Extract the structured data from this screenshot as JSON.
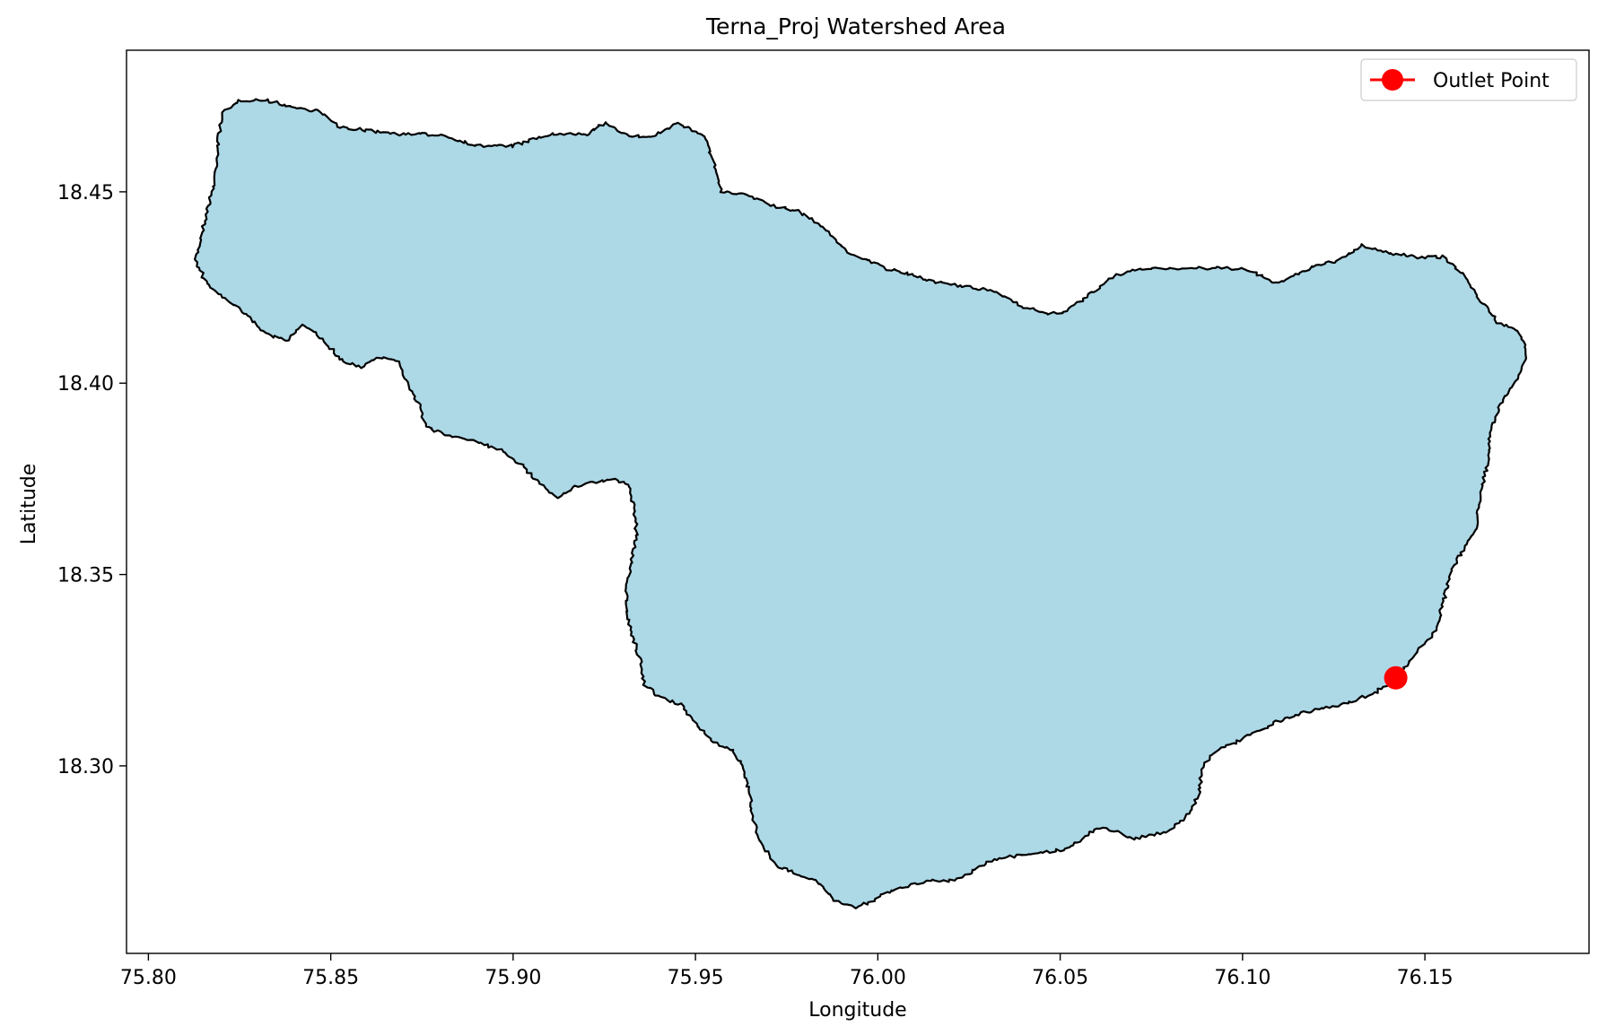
{
  "title": "Terna_Proj Watershed Area",
  "xlabel": "Longitude",
  "ylabel": "Latitude",
  "xticks": [
    "75.80",
    "75.85",
    "75.90",
    "75.95",
    "76.00",
    "76.05",
    "76.10",
    "76.15"
  ],
  "yticks": [
    "18.30",
    "18.35",
    "18.40",
    "18.45"
  ],
  "legend": {
    "label": "Outlet Point",
    "placement": "top-right"
  },
  "colors": {
    "watershed_fill": "#add8e6",
    "watershed_edge": "#000000",
    "outlet": "#ff0000"
  },
  "chart_data": {
    "type": "map",
    "xlim": [
      75.794,
      76.195
    ],
    "ylim": [
      18.251,
      18.487
    ],
    "x_ticks": [
      75.8,
      75.85,
      75.9,
      75.95,
      76.0,
      76.05,
      76.1,
      76.15
    ],
    "y_ticks": [
      18.3,
      18.35,
      18.4,
      18.45
    ],
    "grid": false,
    "watershed_boundary": [
      [
        75.813,
        18.432
      ],
      [
        75.815,
        18.441
      ],
      [
        75.818,
        18.452
      ],
      [
        75.819,
        18.462
      ],
      [
        75.82,
        18.47
      ],
      [
        75.825,
        18.474
      ],
      [
        75.832,
        18.474
      ],
      [
        75.84,
        18.472
      ],
      [
        75.847,
        18.471
      ],
      [
        75.852,
        18.467
      ],
      [
        75.86,
        18.466
      ],
      [
        75.87,
        18.465
      ],
      [
        75.88,
        18.465
      ],
      [
        75.89,
        18.462
      ],
      [
        75.9,
        18.462
      ],
      [
        75.91,
        18.465
      ],
      [
        75.92,
        18.465
      ],
      [
        75.925,
        18.468
      ],
      [
        75.931,
        18.465
      ],
      [
        75.938,
        18.464
      ],
      [
        75.945,
        18.468
      ],
      [
        75.952,
        18.465
      ],
      [
        75.955,
        18.458
      ],
      [
        75.957,
        18.45
      ],
      [
        75.965,
        18.449
      ],
      [
        75.972,
        18.446
      ],
      [
        75.978,
        18.445
      ],
      [
        75.983,
        18.442
      ],
      [
        75.988,
        18.438
      ],
      [
        75.992,
        18.434
      ],
      [
        75.998,
        18.432
      ],
      [
        76.002,
        18.43
      ],
      [
        76.01,
        18.428
      ],
      [
        76.018,
        18.426
      ],
      [
        76.025,
        18.425
      ],
      [
        76.032,
        18.424
      ],
      [
        76.04,
        18.42
      ],
      [
        76.047,
        18.418
      ],
      [
        76.052,
        18.419
      ],
      [
        76.058,
        18.423
      ],
      [
        76.065,
        18.428
      ],
      [
        76.073,
        18.43
      ],
      [
        76.082,
        18.43
      ],
      [
        76.09,
        18.43
      ],
      [
        76.1,
        18.43
      ],
      [
        76.11,
        18.426
      ],
      [
        76.118,
        18.43
      ],
      [
        76.126,
        18.432
      ],
      [
        76.133,
        18.436
      ],
      [
        76.14,
        18.434
      ],
      [
        76.148,
        18.433
      ],
      [
        76.155,
        18.433
      ],
      [
        76.16,
        18.429
      ],
      [
        76.165,
        18.422
      ],
      [
        76.17,
        18.416
      ],
      [
        76.176,
        18.413
      ],
      [
        76.178,
        18.408
      ],
      [
        76.176,
        18.402
      ],
      [
        76.171,
        18.395
      ],
      [
        76.168,
        18.388
      ],
      [
        76.167,
        18.378
      ],
      [
        76.165,
        18.37
      ],
      [
        76.164,
        18.362
      ],
      [
        76.16,
        18.356
      ],
      [
        76.157,
        18.35
      ],
      [
        76.155,
        18.343
      ],
      [
        76.153,
        18.335
      ],
      [
        76.148,
        18.33
      ],
      [
        76.142,
        18.323
      ],
      [
        76.136,
        18.319
      ],
      [
        76.128,
        18.316
      ],
      [
        76.117,
        18.314
      ],
      [
        76.108,
        18.311
      ],
      [
        76.1,
        18.307
      ],
      [
        76.093,
        18.304
      ],
      [
        76.089,
        18.3
      ],
      [
        76.088,
        18.293
      ],
      [
        76.086,
        18.288
      ],
      [
        76.08,
        18.283
      ],
      [
        76.075,
        18.282
      ],
      [
        76.07,
        18.281
      ],
      [
        76.065,
        18.283
      ],
      [
        76.06,
        18.284
      ],
      [
        76.055,
        18.28
      ],
      [
        76.05,
        18.278
      ],
      [
        76.042,
        18.277
      ],
      [
        76.035,
        18.276
      ],
      [
        76.03,
        18.275
      ],
      [
        76.025,
        18.272
      ],
      [
        76.02,
        18.27
      ],
      [
        76.015,
        18.27
      ],
      [
        76.01,
        18.269
      ],
      [
        76.005,
        18.268
      ],
      [
        75.999,
        18.265
      ],
      [
        75.994,
        18.263
      ],
      [
        75.988,
        18.265
      ],
      [
        75.983,
        18.27
      ],
      [
        75.977,
        18.272
      ],
      [
        75.972,
        18.274
      ],
      [
        75.968,
        18.28
      ],
      [
        75.966,
        18.285
      ],
      [
        75.965,
        18.292
      ],
      [
        75.963,
        18.3
      ],
      [
        75.96,
        18.304
      ],
      [
        75.955,
        18.306
      ],
      [
        75.95,
        18.311
      ],
      [
        75.946,
        18.316
      ],
      [
        75.94,
        18.318
      ],
      [
        75.936,
        18.321
      ],
      [
        75.935,
        18.327
      ],
      [
        75.933,
        18.333
      ],
      [
        75.931,
        18.34
      ],
      [
        75.931,
        18.345
      ],
      [
        75.932,
        18.352
      ],
      [
        75.934,
        18.36
      ],
      [
        75.933,
        18.368
      ],
      [
        75.932,
        18.373
      ],
      [
        75.928,
        18.375
      ],
      [
        75.922,
        18.374
      ],
      [
        75.917,
        18.373
      ],
      [
        75.912,
        18.37
      ],
      [
        75.907,
        18.374
      ],
      [
        75.903,
        18.378
      ],
      [
        75.898,
        18.382
      ],
      [
        75.892,
        18.384
      ],
      [
        75.885,
        18.386
      ],
      [
        75.88,
        18.387
      ],
      [
        75.876,
        18.389
      ],
      [
        75.874,
        18.395
      ],
      [
        75.871,
        18.4
      ],
      [
        75.868,
        18.406
      ],
      [
        75.863,
        18.407
      ],
      [
        75.858,
        18.404
      ],
      [
        75.853,
        18.406
      ],
      [
        75.85,
        18.409
      ],
      [
        75.846,
        18.413
      ],
      [
        75.842,
        18.415
      ],
      [
        75.838,
        18.411
      ],
      [
        75.832,
        18.413
      ],
      [
        75.827,
        18.418
      ],
      [
        75.82,
        18.423
      ],
      [
        75.816,
        18.426
      ],
      [
        75.813,
        18.432
      ]
    ],
    "outlet_point": {
      "lon": 76.142,
      "lat": 18.323
    }
  }
}
